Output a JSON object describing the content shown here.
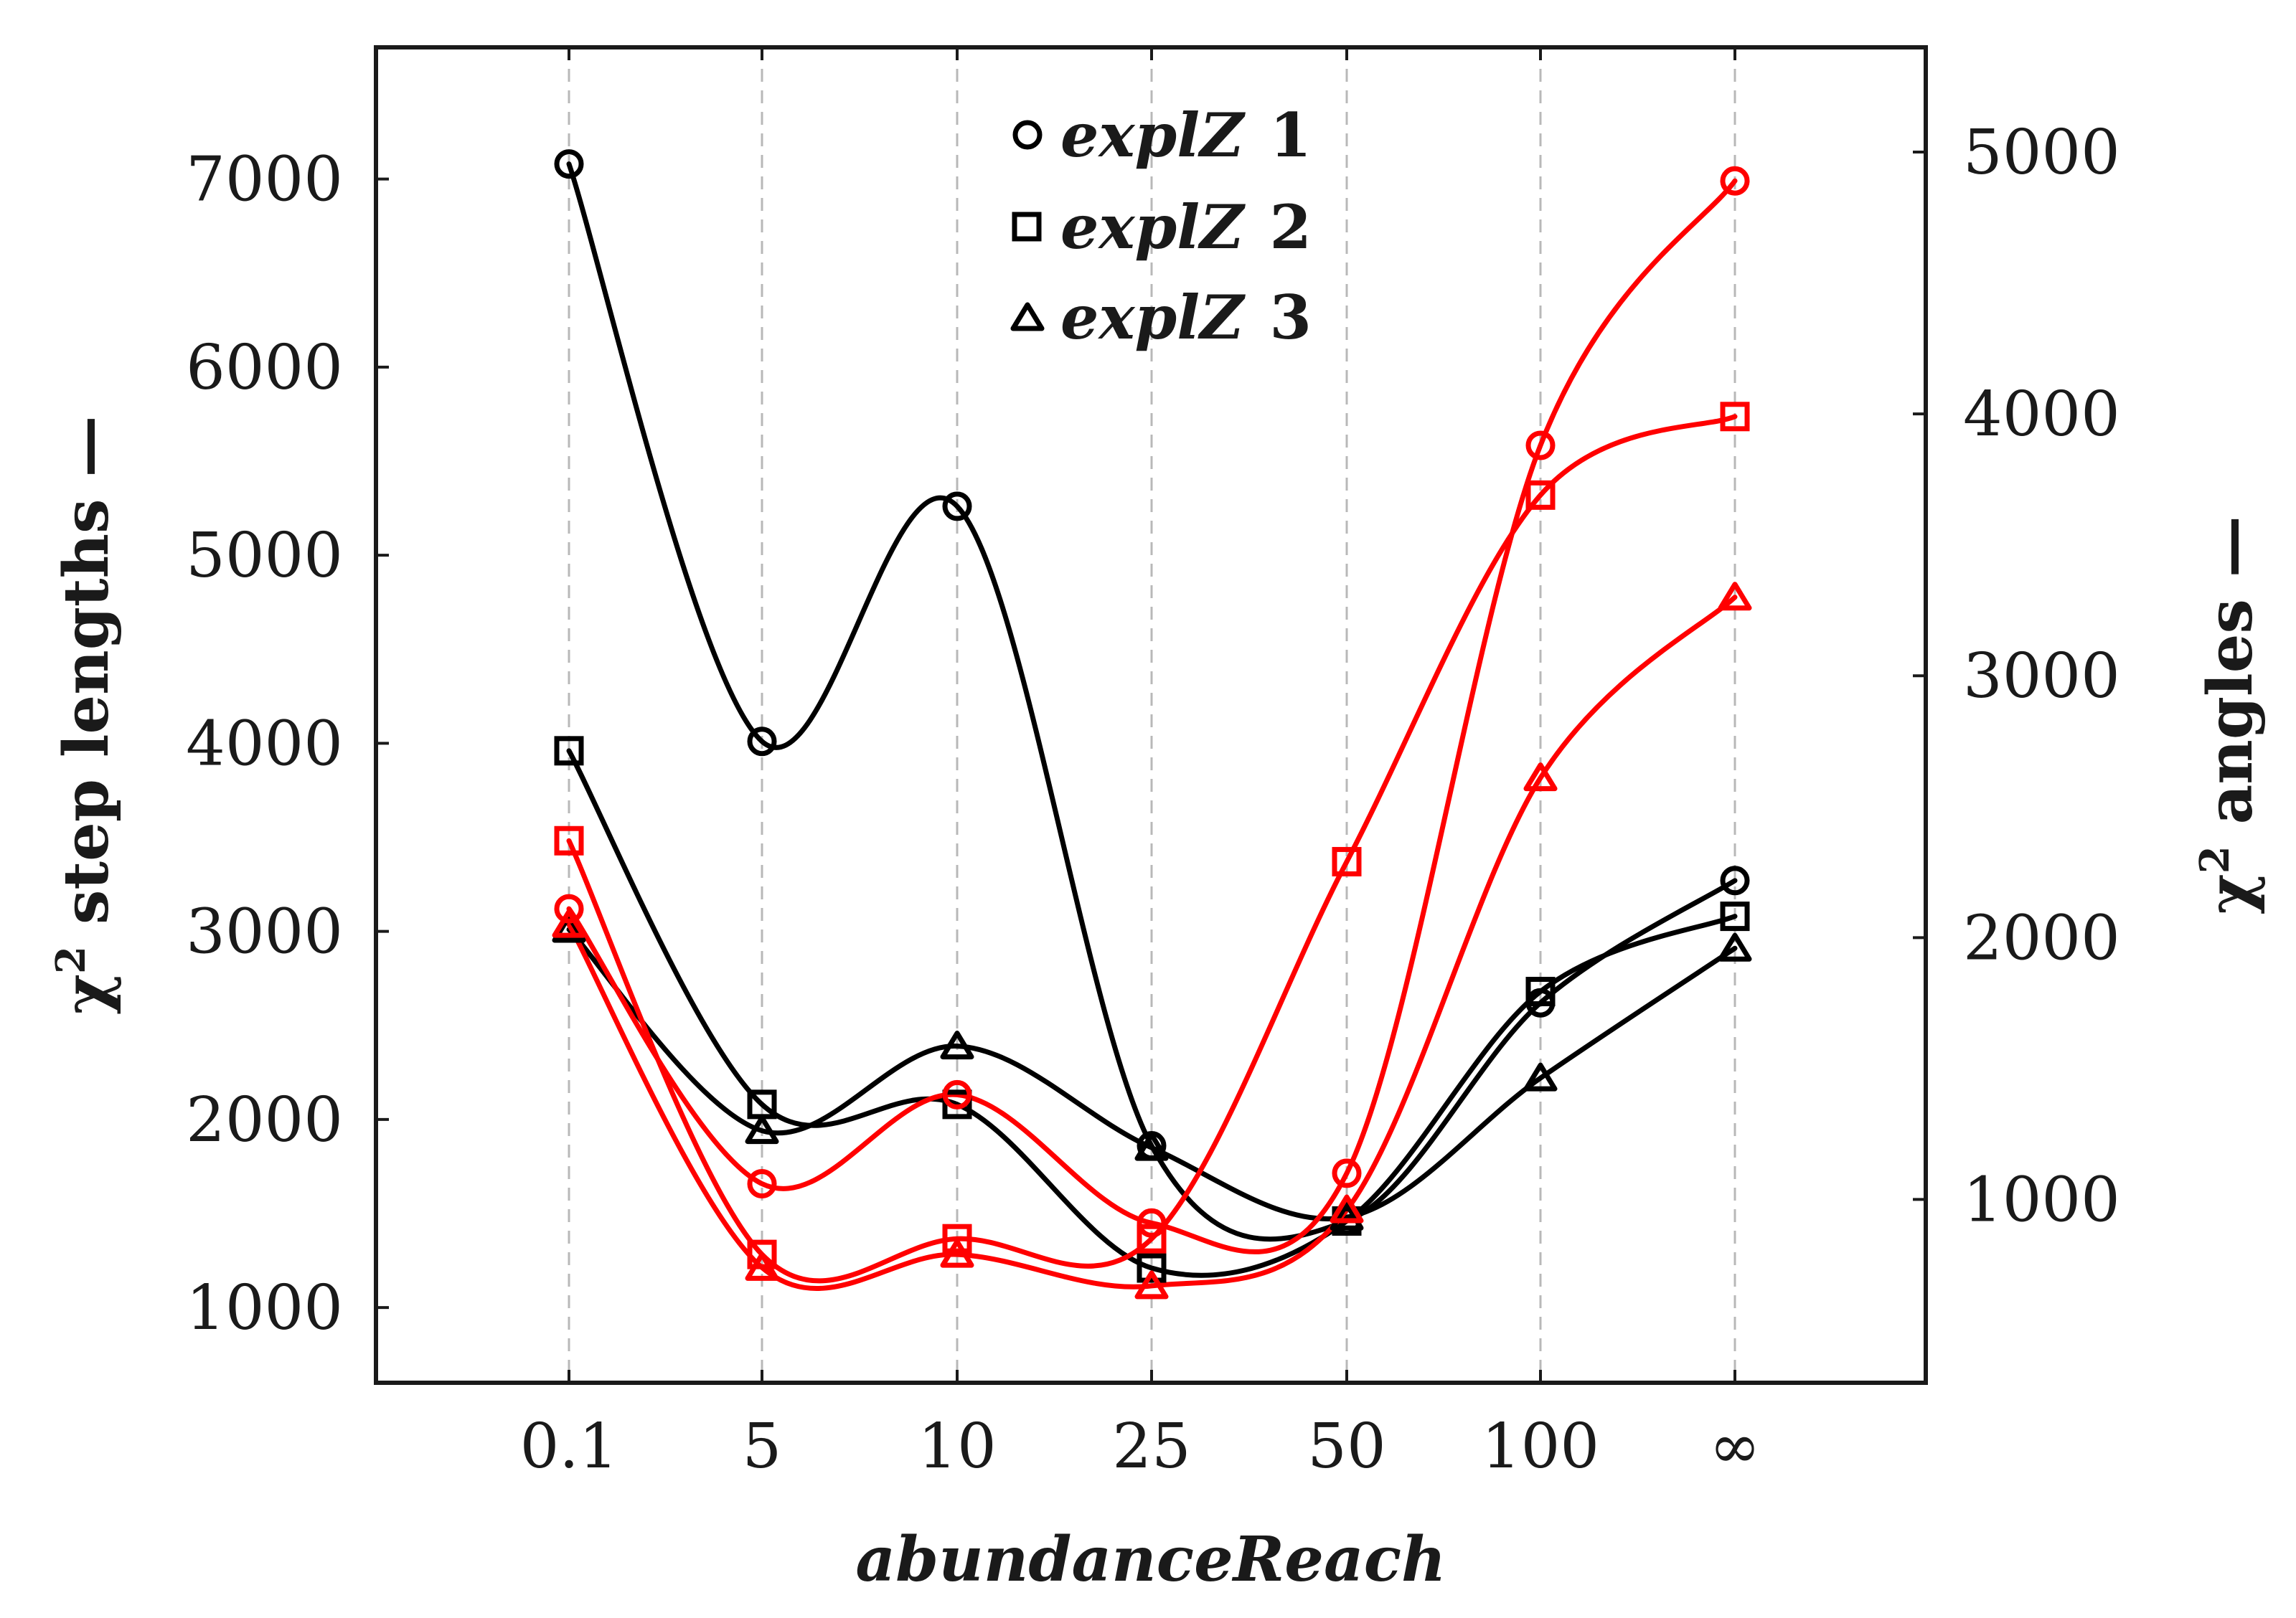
{
  "chart_data": {
    "type": "line",
    "xlabel": "abundanceReach",
    "ylabel_left_main": "χ",
    "ylabel_left_sup": "2",
    "ylabel_left_rest": " step lengths —",
    "ylabel_right_main": "χ",
    "ylabel_right_sup": "2",
    "ylabel_right_rest": " angles —",
    "categories": [
      "0.1",
      "5",
      "10",
      "25",
      "50",
      "100",
      "∞"
    ],
    "ylim_left": [
      600,
      7700
    ],
    "ylim_right": [
      300,
      5400
    ],
    "yticks_left": [
      1000,
      2000,
      3000,
      4000,
      5000,
      6000,
      7000
    ],
    "yticks_right": [
      1000,
      2000,
      3000,
      4000,
      5000
    ],
    "grid": "vertical dashed",
    "legend_position": "top-center",
    "legend": [
      {
        "name": "explZ",
        "num": "1",
        "marker": "circle"
      },
      {
        "name": "explZ",
        "num": "2",
        "marker": "square"
      },
      {
        "name": "explZ",
        "num": "3",
        "marker": "triangle"
      }
    ],
    "series": [
      {
        "name": "explZ 1 step lengths",
        "axis": "left",
        "color": "#000000",
        "marker": "circle",
        "values": [
          7080,
          4010,
          5260,
          1860,
          1460,
          2620,
          3270
        ]
      },
      {
        "name": "explZ 2 step lengths",
        "axis": "left",
        "color": "#000000",
        "marker": "square",
        "values": [
          3960,
          2080,
          2080,
          1210,
          1460,
          2680,
          3080
        ]
      },
      {
        "name": "explZ 3 step lengths",
        "axis": "left",
        "color": "#000000",
        "marker": "triangle",
        "values": [
          3010,
          1940,
          2390,
          1850,
          1480,
          2220,
          2910
        ]
      },
      {
        "name": "explZ 1 angles",
        "axis": "right",
        "color": "#ff0000",
        "marker": "circle",
        "values": [
          2110,
          1060,
          1400,
          910,
          1100,
          3880,
          4890
        ]
      },
      {
        "name": "explZ 2 angles",
        "axis": "right",
        "color": "#ff0000",
        "marker": "square",
        "values": [
          2370,
          790,
          850,
          850,
          2290,
          3690,
          3990
        ]
      },
      {
        "name": "explZ 3 angles",
        "axis": "right",
        "color": "#ff0000",
        "marker": "triangle",
        "values": [
          2050,
          740,
          790,
          670,
          960,
          2610,
          3300
        ]
      }
    ]
  }
}
